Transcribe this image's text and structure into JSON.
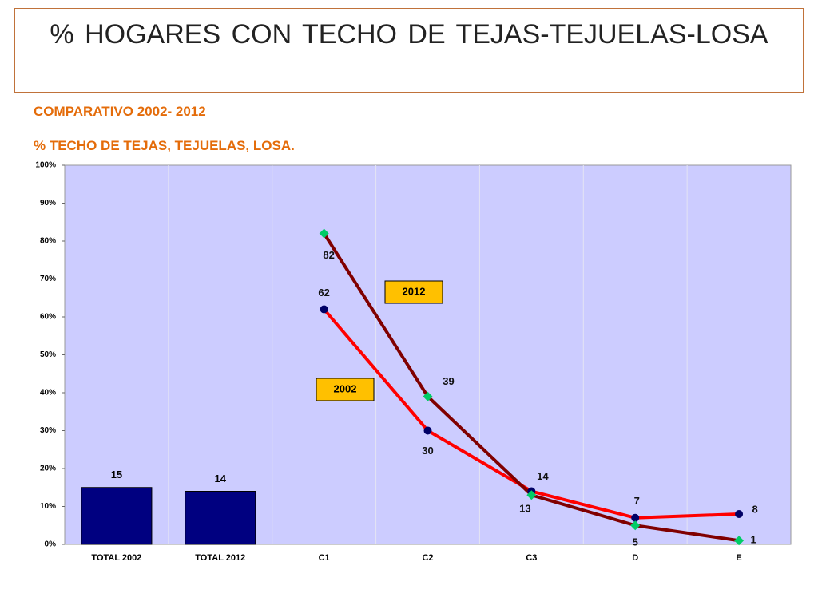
{
  "chart_data": {
    "type": "bar",
    "title": "% HOGARES  CON  TECHO  DE  TEJAS-TEJUELAS-LOSA",
    "subtitle": "COMPARATIVO 2002- 2012",
    "chart_label": "% TECHO DE TEJAS, TEJUELAS, LOSA.",
    "categories": [
      "TOTAL 2002",
      "TOTAL 2012",
      "C1",
      "C2",
      "C3",
      "D",
      "E"
    ],
    "values": [
      15,
      14,
      null,
      null,
      null,
      null,
      null
    ],
    "color": "#000080",
    "series": [
      {
        "name": "2002",
        "type": "line",
        "color": "#ff0000",
        "marker_color": "#000066",
        "marker": "circle",
        "values": [
          null,
          null,
          62,
          30,
          14,
          7,
          8
        ]
      },
      {
        "name": "2012",
        "type": "line",
        "color": "#800000",
        "marker_color": "#00cc66",
        "marker": "diamond",
        "values": [
          null,
          null,
          82,
          39,
          13,
          5,
          1
        ]
      }
    ],
    "ylim": [
      0,
      100
    ],
    "yticks": [
      {
        "value": 0,
        "label": "0%"
      },
      {
        "value": 10,
        "label": "10%"
      },
      {
        "value": 20,
        "label": "20%"
      },
      {
        "value": 30,
        "label": "30%"
      },
      {
        "value": 40,
        "label": "40%"
      },
      {
        "value": 50,
        "label": "50%"
      },
      {
        "value": 60,
        "label": "60%"
      },
      {
        "value": 70,
        "label": "70%"
      },
      {
        "value": 80,
        "label": "80%"
      },
      {
        "value": 90,
        "label": "90%"
      },
      {
        "value": 100,
        "label": "100%"
      }
    ],
    "grid": true
  }
}
